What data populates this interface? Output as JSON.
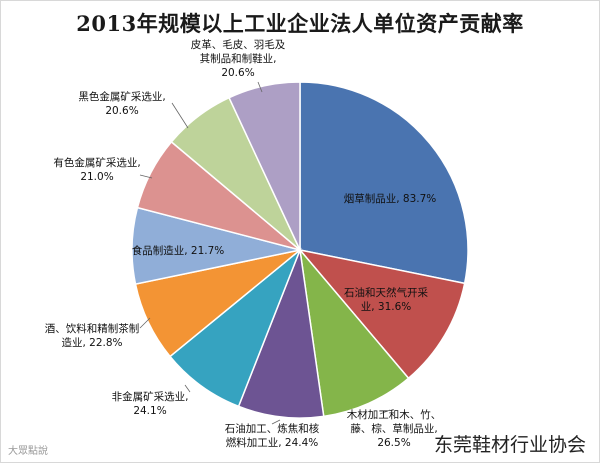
{
  "chart_data": {
    "type": "pie",
    "title": "2013年规模以上工业企业法人单位资产贡献率",
    "slices": [
      {
        "label": "烟草制品业",
        "value": 83.7,
        "display": "烟草制品业, 83.7%",
        "color": "#4a74b0"
      },
      {
        "label": "石油和天然气开采业",
        "value": 31.6,
        "display": "石油和天然气开采业, 31.6%",
        "color": "#c0504d"
      },
      {
        "label": "木材加工和木、竹、藤、棕、草制品业",
        "value": 26.5,
        "display": "木材加工和木、竹、藤、棕、草制品业, 26.5%",
        "color": "#84b54a"
      },
      {
        "label": "石油加工、炼焦和核燃料加工业",
        "value": 24.4,
        "display": "石油加工、炼焦和核燃料加工业, 24.4%",
        "color": "#6d5493"
      },
      {
        "label": "非金属矿采选业",
        "value": 24.1,
        "display": "非金属矿采选业, 24.1%",
        "color": "#36a3c0"
      },
      {
        "label": "酒、饮料和精制茶制造业",
        "value": 22.8,
        "display": "酒、饮料和精制茶制造业, 22.8%",
        "color": "#f39434"
      },
      {
        "label": "食品制造业",
        "value": 21.7,
        "display": "食品制造业, 21.7%",
        "color": "#90aed8"
      },
      {
        "label": "有色金属矿采选业",
        "value": 21.0,
        "display": "有色金属矿采选业, 21.0%",
        "color": "#dc9290"
      },
      {
        "label": "黑色金属矿采选业",
        "value": 20.6,
        "display": "黑色金属矿采选业, 20.6%",
        "color": "#bed39a"
      },
      {
        "label": "皮革、毛皮、羽毛及其制品和制鞋业",
        "value": 20.6,
        "display": "皮革、毛皮、羽毛及其制品和制鞋业, 20.6%",
        "color": "#ad9fc5"
      }
    ]
  },
  "watermarks": {
    "right": "东莞鞋材行业协会",
    "left": "大眾點說"
  }
}
